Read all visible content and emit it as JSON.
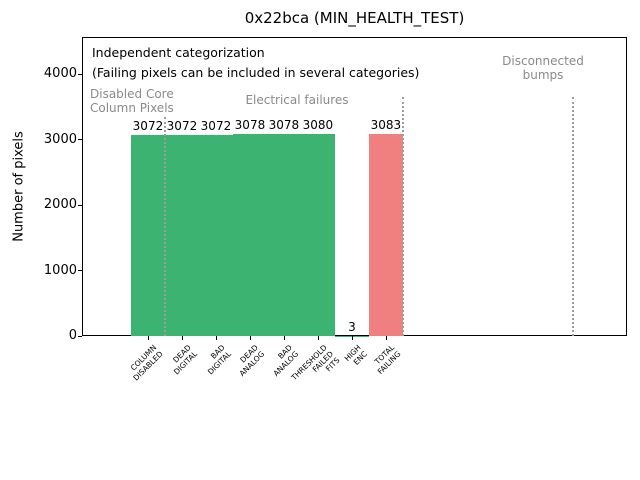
{
  "title": "0x22bca (MIN_HEALTH_TEST)",
  "ylabel": "Number of pixels",
  "annotations": {
    "independent": "Independent categorization",
    "failing_note": "(Failing pixels can be included in several categories)",
    "region_disabled": "Disabled Core\nColumn Pixels",
    "region_electrical": "Electrical failures",
    "region_disconnected": "Disconnected\nbumps"
  },
  "colors": {
    "pass_green": "#3cb371",
    "fail_red": "#f08080",
    "annotation_gray": "#8a8a8a",
    "separator_gray": "#9e9e9e"
  },
  "chart_data": {
    "type": "bar",
    "title": "0x22bca (MIN_HEALTH_TEST)",
    "xlabel": "",
    "ylabel": "Number of pixels",
    "categories": [
      "COLUMN\nDISABLED",
      "DEAD\nDIGITAL",
      "BAD\nDIGITAL",
      "DEAD\nANALOG",
      "BAD\nANALOG",
      "THRESHOLD\nFAILED\nFITS",
      "HIGH\nENC",
      "TOTAL\nFAILING"
    ],
    "values": [
      3072,
      3072,
      3072,
      3078,
      3078,
      3080,
      3,
      3083
    ],
    "value_labels": [
      "3072",
      "3072",
      "3072",
      "3078",
      "3078",
      "3080",
      "3",
      "3083"
    ],
    "bar_colors": [
      "#3cb371",
      "#3cb371",
      "#3cb371",
      "#3cb371",
      "#3cb371",
      "#3cb371",
      "#3cb371",
      "#f08080"
    ],
    "yticks": [
      0,
      1000,
      2000,
      3000,
      4000
    ],
    "ytick_labels": [
      "0",
      "1000",
      "2000",
      "3000",
      "4000"
    ],
    "ylim": [
      0,
      4565
    ],
    "xlim": [
      -1.94,
      14.09
    ],
    "grid": false,
    "legend": null,
    "region_separators": [
      {
        "x": 0.5,
        "y_top": 3350
      },
      {
        "x": 7.5,
        "y_top": 3650
      },
      {
        "x": 12.5,
        "y_top": 3650
      }
    ]
  }
}
